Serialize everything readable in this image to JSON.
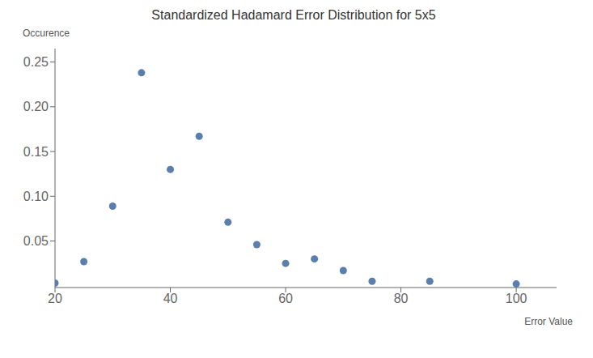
{
  "chart_data": {
    "type": "scatter",
    "title": "Standardized Hadamard Error Distribution for 5x5",
    "xlabel": "Error Value",
    "ylabel": "Occurence",
    "x": [
      20,
      25,
      30,
      35,
      40,
      45,
      50,
      55,
      60,
      65,
      70,
      75,
      85,
      100
    ],
    "values": [
      0.003,
      0.027,
      0.089,
      0.238,
      0.13,
      0.167,
      0.071,
      0.046,
      0.025,
      0.03,
      0.017,
      0.005,
      0.005,
      0.002
    ],
    "color": "#5b7fad",
    "xlim": [
      20,
      107
    ],
    "ylim": [
      -0.002,
      0.265
    ],
    "xticks": [
      20,
      40,
      60,
      80,
      100
    ],
    "yticks": [
      0.05,
      {
        "value": 0.1,
        "label": "0.10"
      },
      0.15,
      {
        "value": 0.2,
        "label": "0.20"
      },
      0.25
    ],
    "grid": false
  }
}
